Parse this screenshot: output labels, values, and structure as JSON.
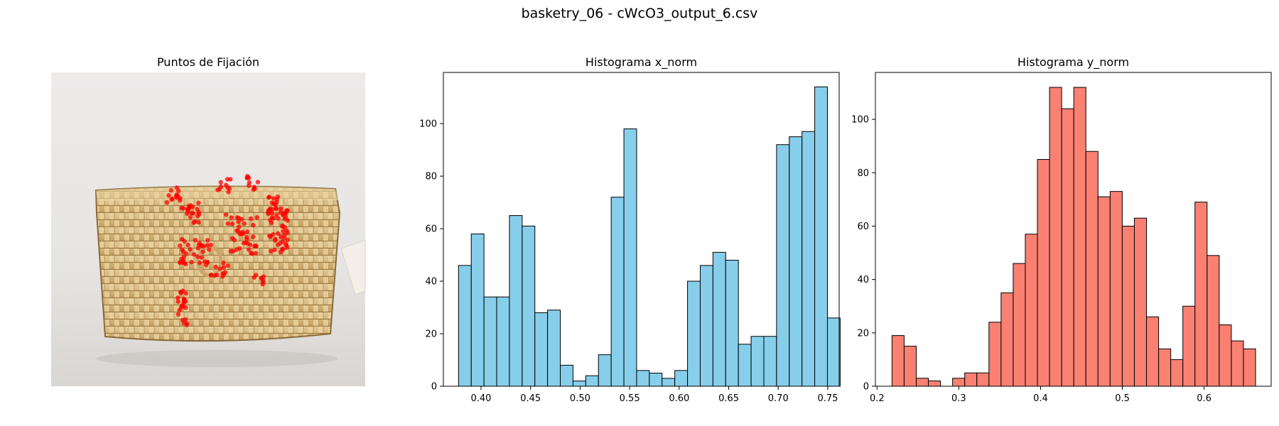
{
  "suptitle": "basketry_06 - cWcO3_output_6.csv",
  "panel_image": {
    "title": "Puntos de Fijación",
    "description_icon": "basket-photo-with-red-fixation-dots",
    "dot_color": "#ff0000"
  },
  "chart_data": [
    {
      "type": "bar",
      "title": "Histograma x_norm",
      "xlabel": "",
      "ylabel": "",
      "xlim": [
        0.362,
        0.7615
      ],
      "ylim": [
        0,
        119.5
      ],
      "xticks": [
        0.4,
        0.45,
        0.5,
        0.55,
        0.6,
        0.65,
        0.7,
        0.75
      ],
      "xtick_labels": [
        "0.40",
        "0.45",
        "0.50",
        "0.55",
        "0.60",
        "0.65",
        "0.70",
        "0.75"
      ],
      "yticks": [
        0,
        20,
        40,
        60,
        80,
        100
      ],
      "ytick_labels": [
        "0",
        "20",
        "40",
        "60",
        "80",
        "100"
      ],
      "bin_start": 0.3773,
      "bin_width": 0.01284,
      "values": [
        46,
        58,
        34,
        34,
        65,
        61,
        28,
        29,
        8,
        2,
        4,
        12,
        72,
        98,
        6,
        5,
        3,
        6,
        40,
        46,
        51,
        48,
        16,
        19,
        19,
        92,
        95,
        97,
        114,
        26
      ],
      "color": "#87ceeb",
      "edge_color": "#000000",
      "grid": false
    },
    {
      "type": "bar",
      "title": "Histograma y_norm",
      "xlabel": "",
      "ylabel": "",
      "xlim": [
        0.198,
        0.682
      ],
      "ylim": [
        0,
        117.6
      ],
      "xticks": [
        0.2,
        0.3,
        0.4,
        0.5,
        0.6
      ],
      "xtick_labels": [
        "0.2",
        "0.3",
        "0.4",
        "0.5",
        "0.6"
      ],
      "yticks": [
        0,
        20,
        40,
        60,
        80,
        100
      ],
      "ytick_labels": [
        "0",
        "20",
        "40",
        "60",
        "80",
        "100"
      ],
      "bin_start": 0.2183,
      "bin_width": 0.01482,
      "values": [
        19,
        15,
        3,
        2,
        0,
        3,
        5,
        5,
        24,
        35,
        46,
        57,
        85,
        112,
        104,
        112,
        88,
        71,
        73,
        60,
        63,
        26,
        14,
        10,
        30,
        69,
        49,
        23,
        17,
        14
      ],
      "color": "#fa8072",
      "edge_color": "#000000",
      "grid": false
    }
  ]
}
